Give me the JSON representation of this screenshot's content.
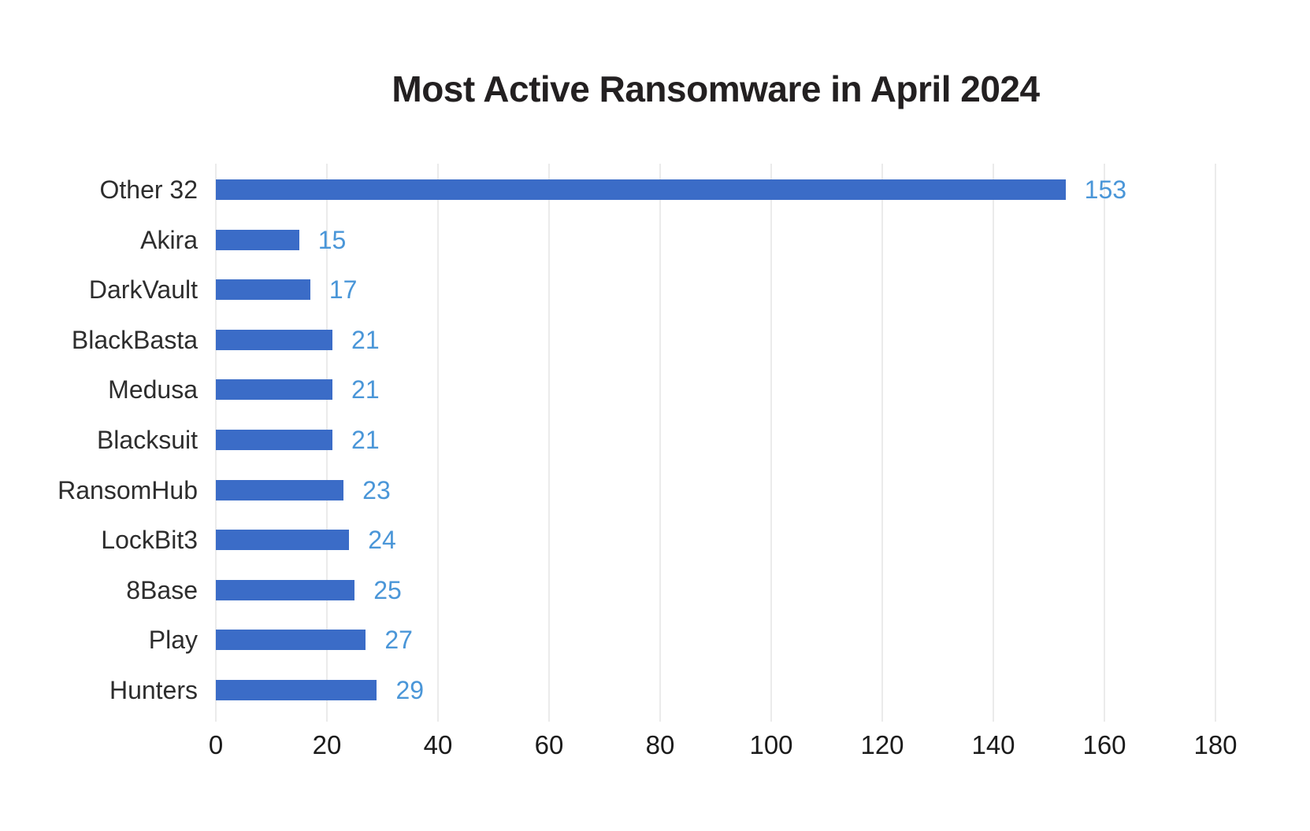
{
  "chart_data": {
    "type": "bar",
    "orientation": "horizontal",
    "title": "Most Active Ransomware in April 2024",
    "categories": [
      "Other 32",
      "Akira",
      "DarkVault",
      "BlackBasta",
      "Medusa",
      "Blacksuit",
      "RansomHub",
      "LockBit3",
      "8Base",
      "Play",
      "Hunters"
    ],
    "values": [
      153,
      15,
      17,
      21,
      21,
      21,
      23,
      24,
      25,
      27,
      29
    ],
    "xlabel": "",
    "ylabel": "",
    "xlim": [
      0,
      180
    ],
    "x_ticks": [
      0,
      20,
      40,
      60,
      80,
      100,
      120,
      140,
      160,
      180
    ],
    "grid": "vertical-only",
    "legend": "none",
    "value_labels_shown": true,
    "colors": {
      "bar": "#3b6cc7",
      "value_label": "#4a96d8",
      "category_label": "#2d2d2d",
      "tick_label": "#1b1b1b",
      "grid_line": "#ebebeb",
      "title": "#232021",
      "background": "#ffffff"
    }
  }
}
